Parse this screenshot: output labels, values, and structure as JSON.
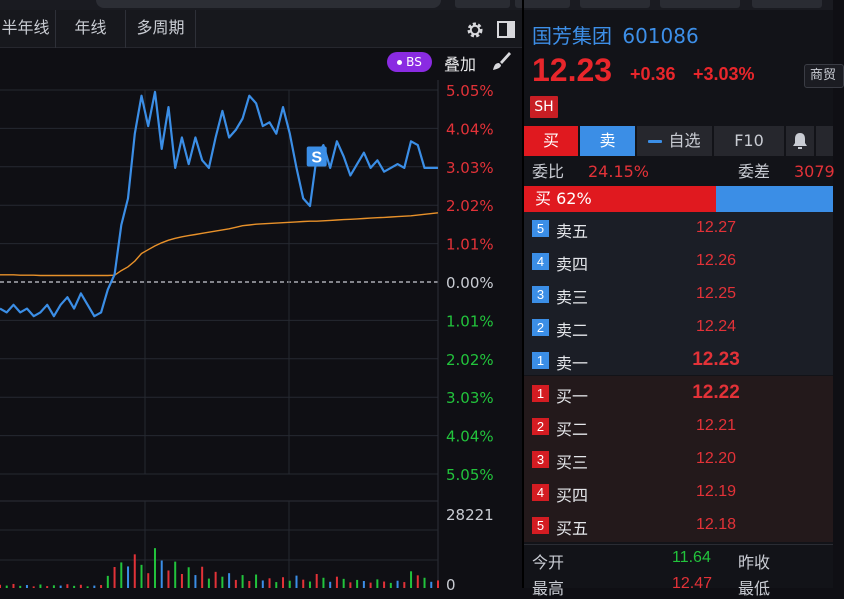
{
  "chart_toolbar": {
    "tabs": [
      "半年线",
      "年线",
      "多周期"
    ]
  },
  "overlay": {
    "bs_badge": "BS",
    "overlay_label": "叠加"
  },
  "chart_data": {
    "type": "line",
    "title": "",
    "price_axis_labels": [
      "5.05%",
      "4.04%",
      "3.03%",
      "2.02%",
      "1.01%",
      "0.00%",
      "1.01%",
      "2.02%",
      "3.03%",
      "4.04%",
      "5.05%"
    ],
    "ylim": [
      -5.05,
      5.05
    ],
    "series": [
      {
        "color": "#3b8ee6",
        "unit": "percent change",
        "values": [
          -0.7,
          -0.8,
          -0.6,
          -0.8,
          -0.7,
          -0.9,
          -0.8,
          -0.6,
          -0.9,
          -0.6,
          -0.4,
          -0.7,
          -0.3,
          -0.6,
          -0.9,
          -0.8,
          -0.2,
          0.2,
          1.5,
          2.2,
          3.9,
          4.9,
          4.1,
          5.0,
          3.5,
          4.6,
          3.0,
          3.8,
          3.1,
          3.8,
          3.2,
          3.0,
          3.8,
          4.5,
          3.8,
          4.0,
          4.3,
          4.9,
          4.7,
          4.1,
          4.2,
          3.9,
          4.6,
          3.9,
          3.0,
          2.2,
          2.0,
          3.3,
          3.6,
          3.0,
          3.7,
          3.3,
          2.8,
          3.1,
          3.4,
          3.0,
          3.2,
          2.9,
          3.0,
          3.1,
          3.0,
          3.7,
          3.6,
          3.0,
          3.0,
          3.0
        ]
      },
      {
        "color": "#e8912a",
        "unit": "percent change (average price)",
        "values": [
          0.19,
          0.19,
          0.19,
          0.18,
          0.18,
          0.18,
          0.17,
          0.17,
          0.17,
          0.17,
          0.17,
          0.17,
          0.17,
          0.17,
          0.17,
          0.17,
          0.17,
          0.18,
          0.3,
          0.4,
          0.55,
          0.75,
          0.85,
          0.95,
          1.03,
          1.1,
          1.15,
          1.19,
          1.22,
          1.25,
          1.28,
          1.31,
          1.34,
          1.37,
          1.4,
          1.44,
          1.48,
          1.5,
          1.52,
          1.53,
          1.54,
          1.55,
          1.56,
          1.57,
          1.58,
          1.59,
          1.6,
          1.6,
          1.61,
          1.62,
          1.63,
          1.64,
          1.65,
          1.66,
          1.67,
          1.68,
          1.69,
          1.7,
          1.71,
          1.72,
          1.73,
          1.74,
          1.76,
          1.78,
          1.8,
          1.82
        ]
      }
    ],
    "trade_marker": "S",
    "volume": {
      "axis_labels": [
        "28221",
        "0"
      ],
      "ylim": [
        0,
        28221
      ],
      "values": [
        1200,
        900,
        1500,
        800,
        1100,
        600,
        1300,
        700,
        1000,
        900,
        1400,
        800,
        1200,
        600,
        900,
        1100,
        4500,
        7800,
        9500,
        8000,
        12500,
        8600,
        5500,
        14800,
        10200,
        6500,
        9800,
        5200,
        7700,
        4800,
        7900,
        3500,
        6000,
        4200,
        5500,
        3000,
        4800,
        2600,
        5000,
        2800,
        3600,
        2200,
        4000,
        2700,
        4600,
        3100,
        2400,
        5200,
        3800,
        2300,
        4200,
        3400,
        2100,
        3000,
        2600,
        2000,
        3200,
        2400,
        1900,
        2700,
        2200,
        6200,
        4700,
        3800,
        2300,
        2800
      ],
      "colors": [
        "#e23238",
        "#22c33c",
        "#e23238",
        "#22c33c",
        "#3b8ee6"
      ]
    }
  },
  "quote": {
    "name": "国芳集团",
    "code": "601086",
    "price": "12.23",
    "change": "+0.36",
    "change_pct": "+3.03%",
    "sector_button": "商贸",
    "exchange": "SH"
  },
  "actions": {
    "buy": "买",
    "sell": "卖",
    "watch": "自选",
    "f10": "F10"
  },
  "ratios": {
    "weibi_label": "委比",
    "weibi_value": "24.15%",
    "weicha_label": "委差",
    "weicha_value": "3079"
  },
  "buy_ratio": {
    "label": "买 62%",
    "fraction": 0.62
  },
  "order_book": {
    "asks": [
      {
        "n": "5",
        "label": "卖五",
        "price": "12.27"
      },
      {
        "n": "4",
        "label": "卖四",
        "price": "12.26"
      },
      {
        "n": "3",
        "label": "卖三",
        "price": "12.25"
      },
      {
        "n": "2",
        "label": "卖二",
        "price": "12.24"
      },
      {
        "n": "1",
        "label": "卖一",
        "price": "12.23"
      }
    ],
    "bids": [
      {
        "n": "1",
        "label": "买一",
        "price": "12.22"
      },
      {
        "n": "2",
        "label": "买二",
        "price": "12.21"
      },
      {
        "n": "3",
        "label": "买三",
        "price": "12.20"
      },
      {
        "n": "4",
        "label": "买四",
        "price": "12.19"
      },
      {
        "n": "5",
        "label": "买五",
        "price": "12.18"
      }
    ]
  },
  "stats": {
    "open_label": "今开",
    "open_value": "11.64",
    "prev_close_label": "昨收",
    "high_label": "最高",
    "high_value": "12.47",
    "low_label": "最低"
  }
}
